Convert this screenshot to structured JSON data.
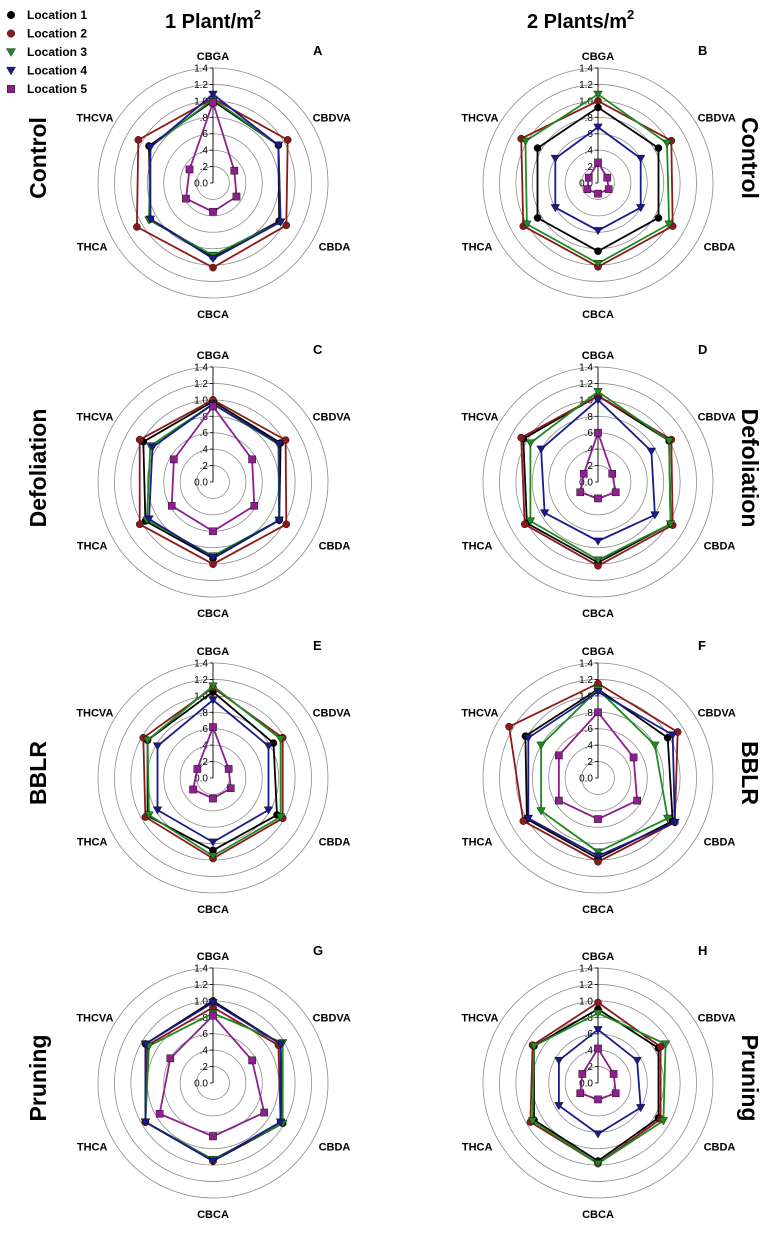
{
  "figure": {
    "col1_header": "1 Plant/m",
    "col2_header": "2 Plants/m",
    "header_superscript": "2",
    "row_labels": [
      "Control",
      "Defoliation",
      "BBLR",
      "Pruning"
    ]
  },
  "legend": {
    "entries": [
      {
        "name": "Location 1",
        "color": "#000000",
        "marker": "circle"
      },
      {
        "name": "Location 2",
        "color": "#8b1a1a",
        "marker": "circle"
      },
      {
        "name": "Location 3",
        "color": "#1f8a1f",
        "marker": "triangle-down"
      },
      {
        "name": "Location 4",
        "color": "#1a1a8c",
        "marker": "triangle-down"
      },
      {
        "name": "Location 5",
        "color": "#8e1f8e",
        "marker": "square"
      }
    ]
  },
  "chart_data": [
    {
      "type": "radar",
      "panel": "A",
      "row_label": "Control",
      "axes": [
        "CBGA",
        "CBDVA",
        "CBDA",
        "CBCA",
        "THCA",
        "THCVA"
      ],
      "rlim": [
        0,
        1.4
      ],
      "ticks": [
        "0.0",
        ".2",
        ".4",
        ".6",
        ".8",
        "1.0",
        "1.2",
        "1.4"
      ],
      "series": [
        {
          "name": "Location 1",
          "values": [
            1.0,
            0.92,
            0.93,
            0.9,
            0.88,
            0.9
          ]
        },
        {
          "name": "Location 2",
          "values": [
            1.03,
            1.05,
            1.03,
            1.03,
            1.07,
            1.05
          ]
        },
        {
          "name": "Location 3",
          "values": [
            1.02,
            0.92,
            0.95,
            0.88,
            0.9,
            0.88
          ]
        },
        {
          "name": "Location 4",
          "values": [
            1.08,
            0.92,
            0.95,
            0.92,
            0.88,
            0.88
          ]
        },
        {
          "name": "Location 5",
          "values": [
            0.98,
            0.3,
            0.33,
            0.35,
            0.38,
            0.33
          ]
        }
      ]
    },
    {
      "type": "radar",
      "panel": "B",
      "row_label": "Control",
      "axes": [
        "CBGA",
        "CBDVA",
        "CBDA",
        "CBCA",
        "THCA",
        "THCVA"
      ],
      "rlim": [
        0,
        1.4
      ],
      "ticks": [
        "0.0",
        ".2",
        ".4",
        ".6",
        ".8",
        "1.0",
        "1.2",
        "1.4"
      ],
      "series": [
        {
          "name": "Location 1",
          "values": [
            0.92,
            0.85,
            0.85,
            0.83,
            0.85,
            0.85
          ]
        },
        {
          "name": "Location 2",
          "values": [
            1.0,
            1.03,
            1.05,
            1.02,
            1.05,
            1.08
          ]
        },
        {
          "name": "Location 3",
          "values": [
            1.08,
            0.97,
            1.0,
            0.98,
            1.0,
            1.02
          ]
        },
        {
          "name": "Location 4",
          "values": [
            0.68,
            0.6,
            0.6,
            0.58,
            0.6,
            0.6
          ]
        },
        {
          "name": "Location 5",
          "values": [
            0.25,
            0.13,
            0.15,
            0.13,
            0.15,
            0.13
          ]
        }
      ]
    },
    {
      "type": "radar",
      "panel": "C",
      "row_label": "Defoliation",
      "axes": [
        "CBGA",
        "CBDVA",
        "CBDA",
        "CBCA",
        "THCA",
        "THCVA"
      ],
      "rlim": [
        0,
        1.4
      ],
      "ticks": [
        "0.0",
        ".2",
        ".4",
        ".6",
        ".8",
        "1.0",
        "1.2",
        "1.4"
      ],
      "series": [
        {
          "name": "Location 1",
          "values": [
            0.98,
            0.95,
            0.93,
            0.93,
            0.95,
            0.98
          ]
        },
        {
          "name": "Location 2",
          "values": [
            1.0,
            1.02,
            1.03,
            1.0,
            1.03,
            1.03
          ]
        },
        {
          "name": "Location 3",
          "values": [
            0.95,
            0.92,
            0.93,
            0.9,
            0.93,
            0.88
          ]
        },
        {
          "name": "Location 4",
          "values": [
            0.95,
            0.93,
            0.93,
            0.92,
            0.9,
            0.85
          ]
        },
        {
          "name": "Location 5",
          "values": [
            0.92,
            0.55,
            0.58,
            0.6,
            0.58,
            0.55
          ]
        }
      ]
    },
    {
      "type": "radar",
      "panel": "D",
      "row_label": "Defoliation",
      "axes": [
        "CBGA",
        "CBDVA",
        "CBDA",
        "CBCA",
        "THCA",
        "THCVA"
      ],
      "rlim": [
        0,
        1.4
      ],
      "ticks": [
        "0.0",
        ".2",
        ".4",
        ".6",
        ".8",
        "1.0",
        "1.2",
        "1.4"
      ],
      "series": [
        {
          "name": "Location 1",
          "values": [
            1.05,
            1.0,
            1.02,
            0.98,
            1.0,
            1.05
          ]
        },
        {
          "name": "Location 2",
          "values": [
            1.05,
            1.03,
            1.05,
            1.02,
            1.03,
            1.08
          ]
        },
        {
          "name": "Location 3",
          "values": [
            1.1,
            1.0,
            1.02,
            0.95,
            0.95,
            0.95
          ]
        },
        {
          "name": "Location 4",
          "values": [
            1.0,
            0.75,
            0.8,
            0.72,
            0.75,
            0.8
          ]
        },
        {
          "name": "Location 5",
          "values": [
            0.6,
            0.2,
            0.25,
            0.2,
            0.25,
            0.2
          ]
        }
      ]
    },
    {
      "type": "radar",
      "panel": "E",
      "row_label": "BBLR",
      "axes": [
        "CBGA",
        "CBDVA",
        "CBDA",
        "CBCA",
        "THCA",
        "THCVA"
      ],
      "rlim": [
        0,
        1.4
      ],
      "ticks": [
        "0.0",
        ".2",
        ".4",
        ".6",
        ".8",
        "1.0",
        "1.2",
        "1.4"
      ],
      "series": [
        {
          "name": "Location 1",
          "values": [
            1.05,
            0.85,
            0.9,
            0.88,
            0.92,
            0.92
          ]
        },
        {
          "name": "Location 2",
          "values": [
            1.1,
            0.98,
            0.98,
            0.98,
            0.95,
            0.98
          ]
        },
        {
          "name": "Location 3",
          "values": [
            1.12,
            0.95,
            0.95,
            0.95,
            0.9,
            0.92
          ]
        },
        {
          "name": "Location 4",
          "values": [
            0.95,
            0.78,
            0.78,
            0.78,
            0.78,
            0.78
          ]
        },
        {
          "name": "Location 5",
          "values": [
            0.62,
            0.22,
            0.25,
            0.25,
            0.28,
            0.22
          ]
        }
      ]
    },
    {
      "type": "radar",
      "panel": "F",
      "row_label": "BBLR",
      "axes": [
        "CBGA",
        "CBDVA",
        "CBDA",
        "CBCA",
        "THCA",
        "THCVA"
      ],
      "rlim": [
        0,
        1.4
      ],
      "ticks": [
        "0.0",
        ".2",
        ".4",
        ".6",
        ".8",
        "1.0",
        "1.2",
        "1.4"
      ],
      "series": [
        {
          "name": "Location 1",
          "values": [
            1.08,
            0.98,
            1.05,
            0.98,
            1.0,
            1.02
          ]
        },
        {
          "name": "Location 2",
          "values": [
            1.15,
            1.12,
            1.08,
            1.02,
            1.05,
            1.25
          ]
        },
        {
          "name": "Location 3",
          "values": [
            1.08,
            0.8,
            0.98,
            0.9,
            0.8,
            0.8
          ]
        },
        {
          "name": "Location 4",
          "values": [
            1.05,
            1.05,
            1.08,
            0.95,
            0.98,
            0.98
          ]
        },
        {
          "name": "Location 5",
          "values": [
            0.8,
            0.5,
            0.55,
            0.5,
            0.55,
            0.55
          ]
        }
      ]
    },
    {
      "type": "radar",
      "panel": "G",
      "row_label": "Pruning",
      "axes": [
        "CBGA",
        "CBDVA",
        "CBDA",
        "CBCA",
        "THCA",
        "THCVA"
      ],
      "rlim": [
        0,
        1.4
      ],
      "ticks": [
        "0.0",
        ".2",
        ".4",
        ".6",
        ".8",
        "1.0",
        "1.2",
        "1.4"
      ],
      "series": [
        {
          "name": "Location 1",
          "values": [
            1.0,
            0.95,
            0.98,
            0.95,
            0.95,
            0.95
          ]
        },
        {
          "name": "Location 2",
          "values": [
            0.92,
            0.92,
            0.95,
            0.95,
            0.95,
            0.92
          ]
        },
        {
          "name": "Location 3",
          "values": [
            0.85,
            0.98,
            0.98,
            0.93,
            0.95,
            0.9
          ]
        },
        {
          "name": "Location 4",
          "values": [
            0.98,
            0.95,
            0.95,
            0.95,
            0.95,
            0.95
          ]
        },
        {
          "name": "Location 5",
          "values": [
            0.82,
            0.55,
            0.72,
            0.65,
            0.75,
            0.6
          ]
        }
      ]
    },
    {
      "type": "radar",
      "panel": "H",
      "row_label": "Pruning",
      "axes": [
        "CBGA",
        "CBDVA",
        "CBDA",
        "CBCA",
        "THCA",
        "THCVA"
      ],
      "rlim": [
        0,
        1.4
      ],
      "ticks": [
        "0.0",
        ".2",
        ".4",
        ".6",
        ".8",
        "1.0",
        "1.2",
        "1.4"
      ],
      "series": [
        {
          "name": "Location 1",
          "values": [
            0.9,
            0.85,
            0.85,
            0.95,
            0.9,
            0.9
          ]
        },
        {
          "name": "Location 2",
          "values": [
            0.98,
            0.88,
            0.88,
            0.98,
            0.95,
            0.92
          ]
        },
        {
          "name": "Location 3",
          "values": [
            0.85,
            0.95,
            0.92,
            0.98,
            0.92,
            0.9
          ]
        },
        {
          "name": "Location 4",
          "values": [
            0.65,
            0.55,
            0.6,
            0.62,
            0.55,
            0.55
          ]
        },
        {
          "name": "Location 5",
          "values": [
            0.42,
            0.22,
            0.25,
            0.2,
            0.25,
            0.22
          ]
        }
      ]
    }
  ]
}
